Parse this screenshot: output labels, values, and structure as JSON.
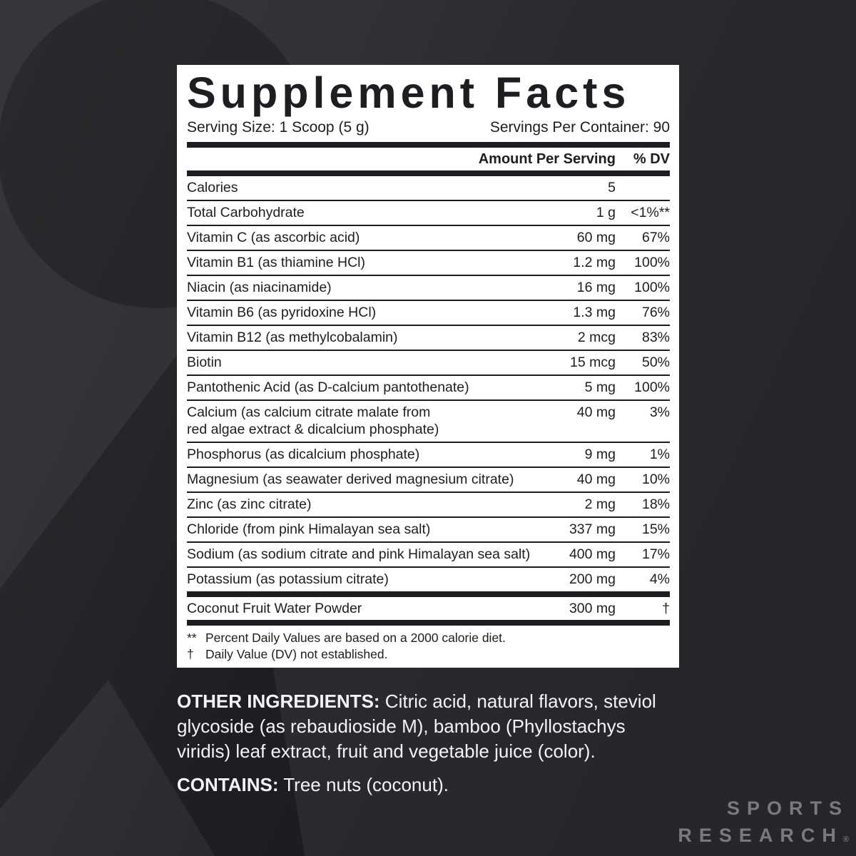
{
  "colors": {
    "background": "#2c2a2f",
    "glyph": "#1e1d21",
    "panel_bg": "#ffffff",
    "panel_text": "#1e1d21",
    "bottom_text": "#f4f3f5",
    "brand_gray": "#7b797e"
  },
  "panel": {
    "title": "Supplement Facts",
    "serving_size": "Serving Size: 1 Scoop (5 g)",
    "servings_per_container": "Servings Per Container: 90",
    "col_amount": "Amount Per Serving",
    "col_dv": "% DV",
    "rows": [
      {
        "name": "Calories",
        "amount": "5",
        "dv": ""
      },
      {
        "name": "Total Carbohydrate",
        "amount": "1 g",
        "dv": "<1%**"
      },
      {
        "name": "Vitamin C (as ascorbic acid)",
        "amount": "60 mg",
        "dv": "67%"
      },
      {
        "name": "Vitamin B1 (as thiamine HCl)",
        "amount": "1.2 mg",
        "dv": "100%"
      },
      {
        "name": "Niacin (as niacinamide)",
        "amount": "16 mg",
        "dv": "100%"
      },
      {
        "name": "Vitamin B6 (as pyridoxine HCl)",
        "amount": "1.3 mg",
        "dv": "76%"
      },
      {
        "name": "Vitamin B12 (as methylcobalamin)",
        "amount": "2 mcg",
        "dv": "83%"
      },
      {
        "name": "Biotin",
        "amount": "15 mcg",
        "dv": "50%"
      },
      {
        "name": "Pantothenic Acid (as D-calcium pantothenate)",
        "amount": "5 mg",
        "dv": "100%"
      },
      {
        "name": "Calcium (as calcium citrate malate from",
        "name2": "red algae extract & dicalcium phosphate)",
        "amount": "40 mg",
        "dv": "3%"
      },
      {
        "name": "Phosphorus (as dicalcium phosphate)",
        "amount": "9 mg",
        "dv": "1%"
      },
      {
        "name": "Magnesium (as seawater derived magnesium citrate)",
        "amount": "40 mg",
        "dv": "10%"
      },
      {
        "name": "Zinc (as zinc citrate)",
        "amount": "2 mg",
        "dv": "18%"
      },
      {
        "name": "Chloride (from pink Himalayan sea salt)",
        "amount": "337 mg",
        "dv": "15%"
      },
      {
        "name": "Sodium (as sodium citrate and pink Himalayan sea salt)",
        "amount": "400 mg",
        "dv": "17%"
      },
      {
        "name": "Potassium (as potassium citrate)",
        "amount": "200 mg",
        "dv": "4%"
      }
    ],
    "extra_row": {
      "name": "Coconut Fruit Water Powder",
      "amount": "300 mg",
      "dv": "†"
    },
    "footnotes": [
      {
        "marker": "**",
        "text": "Percent Daily Values are based on a 2000 calorie diet."
      },
      {
        "marker": "†",
        "text": "Daily Value (DV) not established."
      }
    ]
  },
  "other_ingredients": {
    "label": "OTHER INGREDIENTS:",
    "text": " Citric acid, natural flavors, steviol glycoside (as rebaudioside M), bamboo (Phyllostachys viridis) leaf extract, fruit and vegetable juice (color)."
  },
  "contains": {
    "label": "CONTAINS:",
    "text": " Tree nuts (coconut)."
  },
  "brand": {
    "line1": "SPORTS",
    "line2": "RESEARCH",
    "reg": "®"
  }
}
